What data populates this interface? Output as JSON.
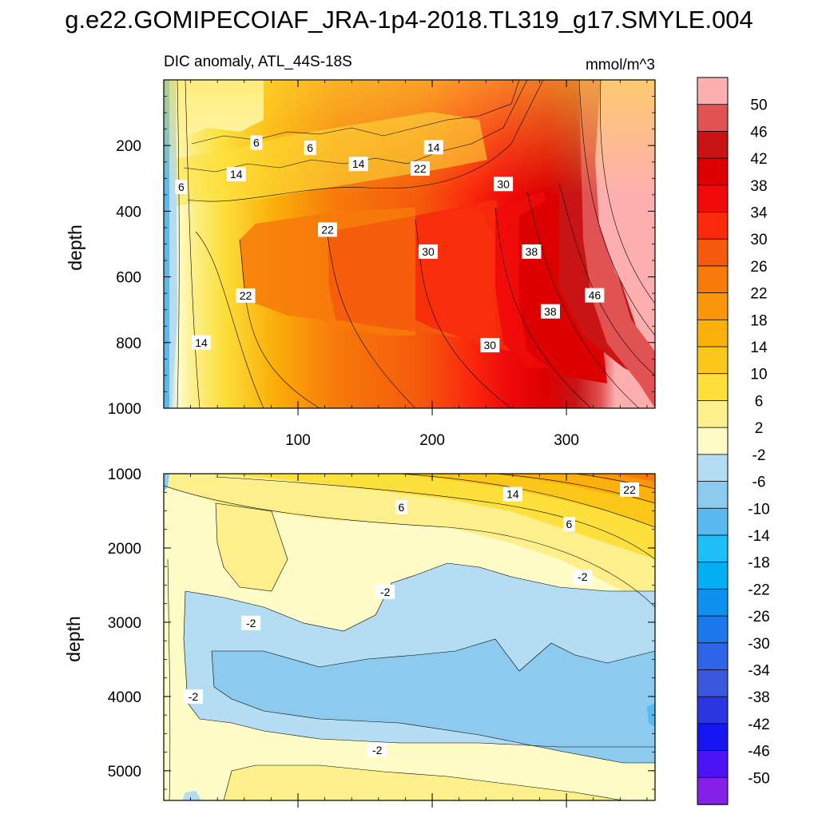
{
  "chart_data": {
    "type": "heatmap",
    "title": "g.e22.GOMIPECOIAF_JRA-1p4-2018.TL319_g17.SMYLE.004",
    "subtitle_left": "DIC anomaly, ATL_44S-18S",
    "units": "mmol/m^3",
    "colorbar": {
      "levels": [
        "50",
        "46",
        "42",
        "38",
        "34",
        "30",
        "26",
        "22",
        "18",
        "14",
        "10",
        "6",
        "2",
        "-2",
        "-6",
        "-10",
        "-14",
        "-18",
        "-22",
        "-26",
        "-30",
        "-34",
        "-38",
        "-42",
        "-46",
        "-50"
      ],
      "colors": [
        "#fdafaf",
        "#e15252",
        "#c81414",
        "#dc0000",
        "#f00a0a",
        "#fa2a0c",
        "#f55a0c",
        "#f77a0a",
        "#fa960a",
        "#fbb00a",
        "#fbc81a",
        "#fde03c",
        "#fdf08c",
        "#fffcc8",
        "#b4dcf2",
        "#8ccaee",
        "#5ab9ef",
        "#1ebef6",
        "#02aff2",
        "#0b91ed",
        "#1a78ea",
        "#2e64e8",
        "#3a58de",
        "#2a36e0",
        "#1616f5",
        "#4a14f5",
        "#8420e8"
      ]
    },
    "panels": [
      {
        "name": "upper",
        "ylabel": "depth",
        "ylim": [
          0,
          1000
        ],
        "yticks": [
          "200",
          "400",
          "600",
          "800",
          "1000"
        ],
        "ytick_values": [
          200,
          400,
          600,
          800,
          1000
        ],
        "xlim": [
          0,
          366
        ],
        "xticks": [
          "100",
          "200",
          "300"
        ],
        "xtick_values": [
          100,
          200,
          300
        ],
        "contour_labels": [
          {
            "text": "6",
            "x": 69,
            "y": 191
          },
          {
            "text": "6",
            "x": 109,
            "y": 207
          },
          {
            "text": "6",
            "x": 13,
            "y": 326
          },
          {
            "text": "14",
            "x": 145,
            "y": 256
          },
          {
            "text": "14",
            "x": 201,
            "y": 205
          },
          {
            "text": "14",
            "x": 54,
            "y": 287
          },
          {
            "text": "14",
            "x": 28,
            "y": 800
          },
          {
            "text": "22",
            "x": 191,
            "y": 270
          },
          {
            "text": "22",
            "x": 122,
            "y": 456
          },
          {
            "text": "22",
            "x": 61,
            "y": 657
          },
          {
            "text": "30",
            "x": 253,
            "y": 317
          },
          {
            "text": "30",
            "x": 197,
            "y": 523
          },
          {
            "text": "30",
            "x": 243,
            "y": 808
          },
          {
            "text": "38",
            "x": 274,
            "y": 523
          },
          {
            "text": "38",
            "x": 288,
            "y": 705
          },
          {
            "text": "46",
            "x": 321,
            "y": 656
          }
        ]
      },
      {
        "name": "lower",
        "ylabel": "depth",
        "ylim": [
          1000,
          5400
        ],
        "yticks": [
          "1000",
          "2000",
          "3000",
          "4000",
          "5000"
        ],
        "ytick_values": [
          1000,
          2000,
          3000,
          4000,
          5000
        ],
        "xlim": [
          0,
          366
        ],
        "xtick_values": [
          100,
          200,
          300
        ],
        "contour_labels": [
          {
            "text": "6",
            "x": 177,
            "y": 1450
          },
          {
            "text": "6",
            "x": 302,
            "y": 1680
          },
          {
            "text": "14",
            "x": 260,
            "y": 1275
          },
          {
            "text": "22",
            "x": 347,
            "y": 1215
          },
          {
            "text": "-2",
            "x": 165,
            "y": 2590
          },
          {
            "text": "-2",
            "x": 312,
            "y": 2390
          },
          {
            "text": "-2",
            "x": 65,
            "y": 3010
          },
          {
            "text": "-2",
            "x": 22,
            "y": 4000
          },
          {
            "text": "-2",
            "x": 159,
            "y": 4720
          }
        ]
      }
    ]
  }
}
